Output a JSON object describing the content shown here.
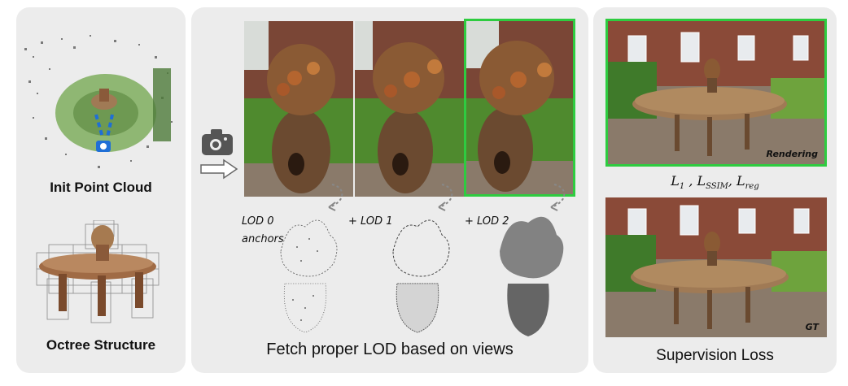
{
  "left_panel": {
    "init_label": "Init Point Cloud",
    "octree_label": "Octree Structure"
  },
  "middle_panel": {
    "lod_labels": [
      "LOD 0",
      "+ LOD 1",
      "+ LOD 2"
    ],
    "anchors_label": "anchors",
    "caption": "Fetch proper LOD based on views",
    "camera_icon": "camera-icon",
    "arrow_icon": "right-arrow-icon"
  },
  "right_panel": {
    "rendering_tag": "Rendering",
    "loss_l1": "L",
    "loss_l1_sub": "1",
    "loss_ssim": "L",
    "loss_ssim_sub": "SSIM",
    "loss_reg": "L",
    "loss_reg_sub": "reg",
    "gt_tag": "GT",
    "caption": "Supervision Loss"
  },
  "colors": {
    "panel_bg": "#ececec",
    "highlight_green": "#2ecc40",
    "camera_blue": "#1f6fd6"
  }
}
